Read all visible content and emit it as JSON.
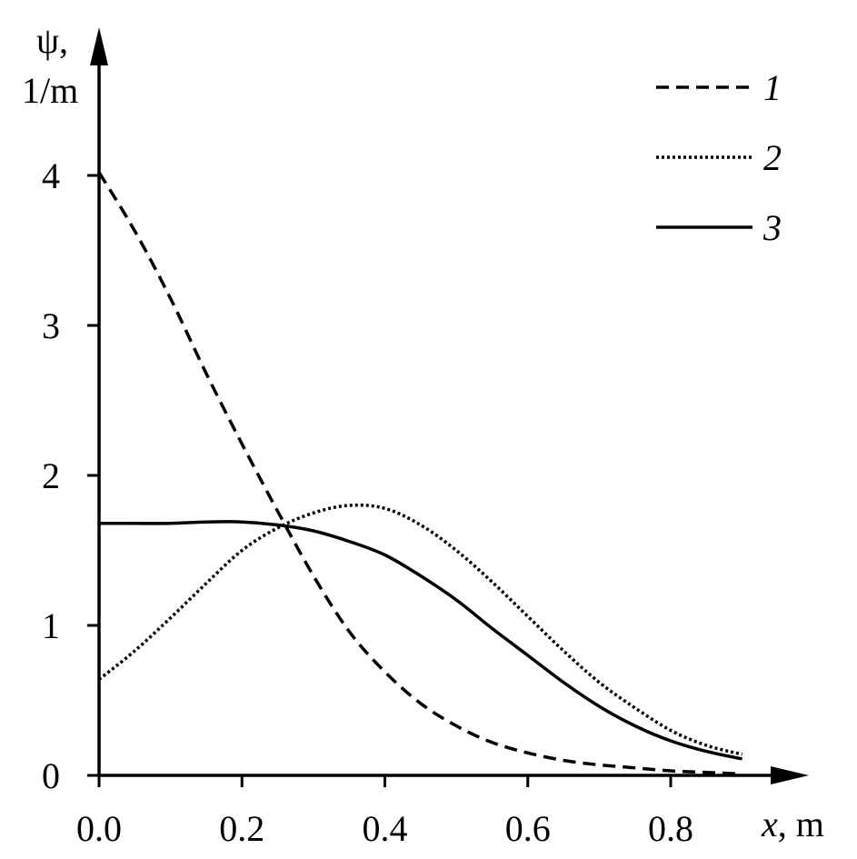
{
  "chart_data": {
    "type": "line",
    "xlabel": {
      "var": "x",
      "unit": ", m"
    },
    "ylabel": {
      "line1": "ψ,",
      "line2": "1/m"
    },
    "xlim": [
      0,
      0.9
    ],
    "ylim": [
      0,
      4
    ],
    "xticks": [
      "0.0",
      "0.2",
      "0.4",
      "0.6",
      "0.8"
    ],
    "yticks": [
      "0",
      "1",
      "2",
      "3",
      "4"
    ],
    "grid": false,
    "legend_position": "top-right",
    "series": [
      {
        "name": "1",
        "style": "dashed",
        "x": [
          0.0,
          0.05,
          0.1,
          0.15,
          0.2,
          0.25,
          0.3,
          0.35,
          0.4,
          0.45,
          0.5,
          0.55,
          0.6,
          0.65,
          0.7,
          0.75,
          0.8,
          0.85,
          0.9
        ],
        "y": [
          4.02,
          3.63,
          3.18,
          2.68,
          2.21,
          1.76,
          1.33,
          0.96,
          0.69,
          0.48,
          0.33,
          0.22,
          0.15,
          0.1,
          0.07,
          0.05,
          0.03,
          0.02,
          0.01
        ]
      },
      {
        "name": "2",
        "style": "dotted",
        "x": [
          0.0,
          0.05,
          0.1,
          0.15,
          0.2,
          0.25,
          0.3,
          0.35,
          0.4,
          0.45,
          0.5,
          0.55,
          0.6,
          0.65,
          0.7,
          0.75,
          0.8,
          0.85,
          0.9
        ],
        "y": [
          0.64,
          0.83,
          1.05,
          1.28,
          1.5,
          1.65,
          1.75,
          1.8,
          1.78,
          1.67,
          1.5,
          1.29,
          1.06,
          0.83,
          0.62,
          0.45,
          0.3,
          0.2,
          0.14
        ]
      },
      {
        "name": "3",
        "style": "solid",
        "x": [
          0.0,
          0.05,
          0.1,
          0.15,
          0.2,
          0.25,
          0.3,
          0.35,
          0.4,
          0.45,
          0.5,
          0.55,
          0.6,
          0.65,
          0.7,
          0.75,
          0.8,
          0.85,
          0.9
        ],
        "y": [
          1.68,
          1.68,
          1.68,
          1.69,
          1.69,
          1.67,
          1.63,
          1.56,
          1.47,
          1.33,
          1.17,
          0.98,
          0.8,
          0.62,
          0.46,
          0.33,
          0.23,
          0.16,
          0.11
        ]
      }
    ]
  }
}
